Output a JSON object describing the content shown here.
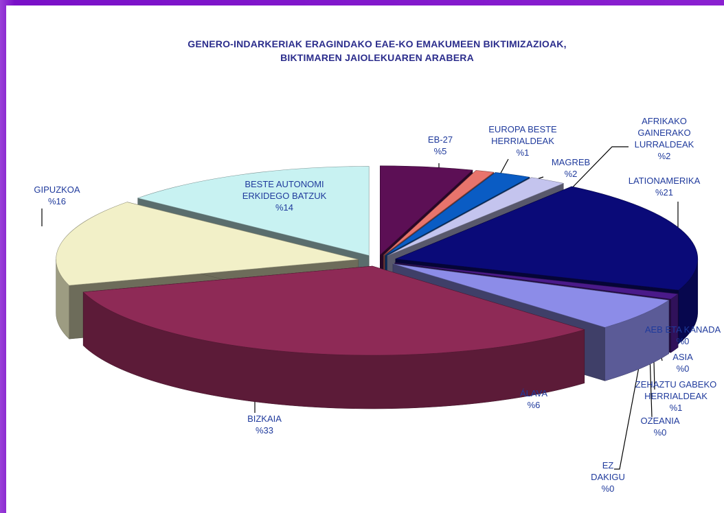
{
  "chart_data": {
    "type": "pie3d",
    "title": [
      "GENERO-INDARKERIAK ERAGINDAKO EAE-KO EMAKUMEEN BIKTIMIZAZIOAK,",
      "BIKTIMAREN JAIOLEKUAREN ARABERA"
    ],
    "categories": [
      "EB-27",
      "EUROPA BESTE HERRIALDEAK",
      "MAGREB",
      "AFRIKAKO GAINERAKO LURRALDEAK",
      "LATIONAMERIKA",
      "AEB ETA KANADA",
      "ASIA",
      "ZEHAZTU GABEKO HERRIALDEAK",
      "OZEANIA",
      "EZ DAKIGU",
      "ÁLAVA",
      "BIZKAIA",
      "GIPUZKOA",
      "BESTE AUTONOMI ERKIDEGO BATZUK"
    ],
    "values": [
      5,
      1,
      2,
      2,
      21,
      0,
      0,
      1,
      0,
      0,
      6,
      33,
      16,
      14
    ],
    "value_labels": [
      "%5",
      "%1",
      "%2",
      "%2",
      "%21",
      "%0",
      "%0",
      "%1",
      "%0",
      "%0",
      "%6",
      "%33",
      "%16",
      "%14"
    ],
    "colors": [
      "#5c0f55",
      "#e8746c",
      "#0a5cc4",
      "#c4c4ee",
      "#0a0a78",
      "#e6e060",
      "#620062",
      "#4a1a8a",
      "#8b0000",
      "#5a0000",
      "#8c8ce8",
      "#8e2a56",
      "#f2f0c8",
      "#c8f2f2"
    ]
  }
}
